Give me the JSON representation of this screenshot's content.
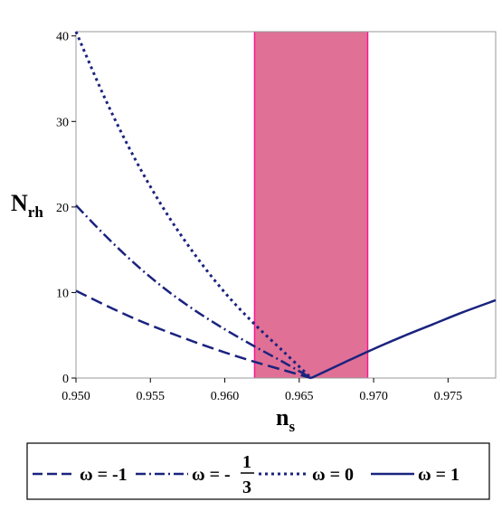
{
  "chart_data": {
    "type": "line",
    "xlabel": "n",
    "xlabel_sub": "s",
    "ylabel": "N",
    "ylabel_sub": "rh",
    "xlim": [
      0.95,
      0.9782
    ],
    "ylim": [
      0,
      40.5
    ],
    "xticks": [
      "0.950",
      "0.955",
      "0.960",
      "0.965",
      "0.970",
      "0.975"
    ],
    "yticks": [
      "0",
      "10",
      "20",
      "30",
      "40"
    ],
    "shaded_band": {
      "x_min": 0.962,
      "x_max": 0.9696,
      "fill": "#e07096",
      "edge": "#ff1493"
    },
    "line_color": "#1a237e",
    "series": [
      {
        "name": "ω = -1",
        "style": "dash",
        "x": [
          0.95,
          0.952,
          0.954,
          0.956,
          0.958,
          0.96,
          0.962,
          0.964,
          0.9658
        ],
        "y": [
          10.2,
          8.5,
          6.9,
          5.5,
          4.2,
          3.0,
          1.9,
          0.9,
          0.0
        ]
      },
      {
        "name_parts": [
          "ω = -",
          "1",
          "3"
        ],
        "style": "dashdot",
        "x": [
          0.95,
          0.952,
          0.954,
          0.956,
          0.958,
          0.96,
          0.962,
          0.964,
          0.9658
        ],
        "y": [
          20.2,
          16.6,
          13.3,
          10.4,
          7.9,
          5.7,
          3.7,
          1.8,
          0.0
        ]
      },
      {
        "name": "ω = 0",
        "style": "dot",
        "x": [
          0.95,
          0.952,
          0.954,
          0.956,
          0.958,
          0.96,
          0.962,
          0.964,
          0.9658
        ],
        "y": [
          40.5,
          32.5,
          25.5,
          19.5,
          14.4,
          10.0,
          6.3,
          3.0,
          0.0
        ]
      },
      {
        "name": "ω = 1",
        "style": "solid",
        "x": [
          0.9658,
          0.968,
          0.97,
          0.972,
          0.974,
          0.976,
          0.9782
        ],
        "y": [
          0.0,
          1.8,
          3.4,
          4.9,
          6.3,
          7.7,
          9.1
        ]
      }
    ],
    "legend_position": "bottom"
  }
}
